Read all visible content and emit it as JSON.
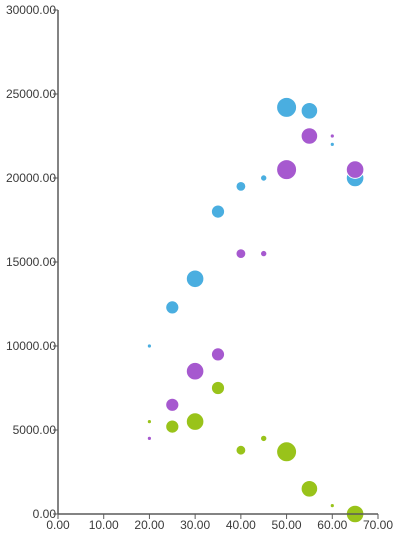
{
  "chart_data": {
    "type": "scatter",
    "subtype": "bubble",
    "title": "",
    "xlabel": "",
    "ylabel": "",
    "xlim": [
      0,
      70
    ],
    "ylim": [
      0,
      30000
    ],
    "x_ticks": [
      "0.00",
      "10.00",
      "20.00",
      "30.00",
      "40.00",
      "50.00",
      "60.00",
      "70.00"
    ],
    "y_ticks": [
      "0.00",
      "5000.00",
      "10000.00",
      "15000.00",
      "20000.00",
      "25000.00",
      "30000.00"
    ],
    "grid": false,
    "legend": "none",
    "series": [
      {
        "color": "#4aaee0",
        "points": [
          {
            "x": 20,
            "y": 10000,
            "size": 1
          },
          {
            "x": 25,
            "y": 12300,
            "size": 5
          },
          {
            "x": 30,
            "y": 14000,
            "size": 7
          },
          {
            "x": 35,
            "y": 18000,
            "size": 5
          },
          {
            "x": 40,
            "y": 19500,
            "size": 3.5
          },
          {
            "x": 45,
            "y": 20000,
            "size": 2
          },
          {
            "x": 50,
            "y": 24200,
            "size": 8
          },
          {
            "x": 55,
            "y": 24000,
            "size": 6.5
          },
          {
            "x": 60,
            "y": 22000,
            "size": 1
          },
          {
            "x": 65,
            "y": 20000,
            "size": 7
          }
        ]
      },
      {
        "color": "#a659cf",
        "points": [
          {
            "x": 20,
            "y": 4500,
            "size": 1
          },
          {
            "x": 25,
            "y": 6500,
            "size": 5
          },
          {
            "x": 30,
            "y": 8500,
            "size": 7
          },
          {
            "x": 35,
            "y": 9500,
            "size": 5
          },
          {
            "x": 40,
            "y": 15500,
            "size": 3.5
          },
          {
            "x": 45,
            "y": 15500,
            "size": 2
          },
          {
            "x": 50,
            "y": 20500,
            "size": 8
          },
          {
            "x": 55,
            "y": 22500,
            "size": 6.5
          },
          {
            "x": 60,
            "y": 22500,
            "size": 1
          },
          {
            "x": 65,
            "y": 20500,
            "size": 7
          }
        ]
      },
      {
        "color": "#99c31a",
        "points": [
          {
            "x": 20,
            "y": 5500,
            "size": 1
          },
          {
            "x": 25,
            "y": 5200,
            "size": 5
          },
          {
            "x": 30,
            "y": 5500,
            "size": 7
          },
          {
            "x": 35,
            "y": 7500,
            "size": 5
          },
          {
            "x": 40,
            "y": 3800,
            "size": 3.5
          },
          {
            "x": 45,
            "y": 4500,
            "size": 2
          },
          {
            "x": 50,
            "y": 3700,
            "size": 8
          },
          {
            "x": 55,
            "y": 1500,
            "size": 6.5
          },
          {
            "x": 60,
            "y": 500,
            "size": 1
          },
          {
            "x": 65,
            "y": 0,
            "size": 7
          }
        ]
      }
    ]
  }
}
